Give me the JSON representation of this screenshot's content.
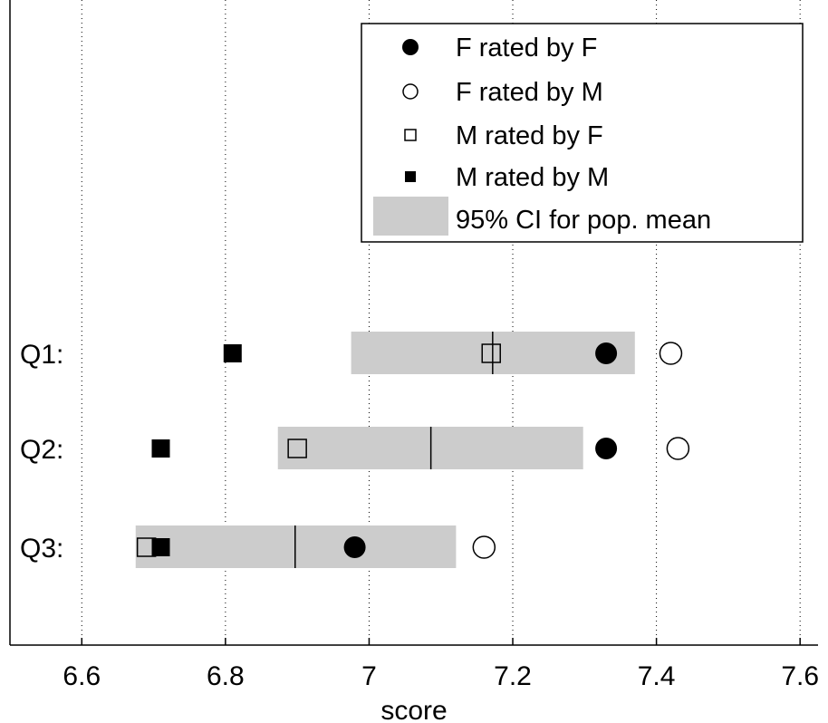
{
  "chart_data": {
    "type": "scatter",
    "xlabel": "score",
    "xlim": [
      6.5,
      7.625
    ],
    "x_ticks": [
      6.6,
      6.8,
      7.0,
      7.2,
      7.4,
      7.6
    ],
    "x_tick_labels": [
      "6.6",
      "6.8",
      "7",
      "7.2",
      "7.4",
      "7.6"
    ],
    "grid": "vertical-dotted",
    "categories": [
      "Q1:",
      "Q2:",
      "Q3:"
    ],
    "legend_position": "top-right",
    "series": [
      {
        "name": "F rated by F",
        "marker": "filled-circle",
        "values": [
          7.33,
          7.33,
          6.98
        ]
      },
      {
        "name": "F rated by M",
        "marker": "open-circle",
        "values": [
          7.42,
          7.43,
          7.16
        ]
      },
      {
        "name": "M rated by F",
        "marker": "open-square",
        "values": [
          7.17,
          6.9,
          6.69
        ]
      },
      {
        "name": "M rated by M",
        "marker": "filled-square",
        "values": [
          6.81,
          6.71,
          6.71
        ]
      }
    ],
    "ci": {
      "name": "95% CI for pop. mean",
      "color": "#cccccc",
      "intervals": [
        {
          "low": 6.975,
          "high": 7.37,
          "mean": 7.172
        },
        {
          "low": 6.873,
          "high": 7.298,
          "mean": 7.086
        },
        {
          "low": 6.675,
          "high": 7.121,
          "mean": 6.897
        }
      ]
    }
  }
}
